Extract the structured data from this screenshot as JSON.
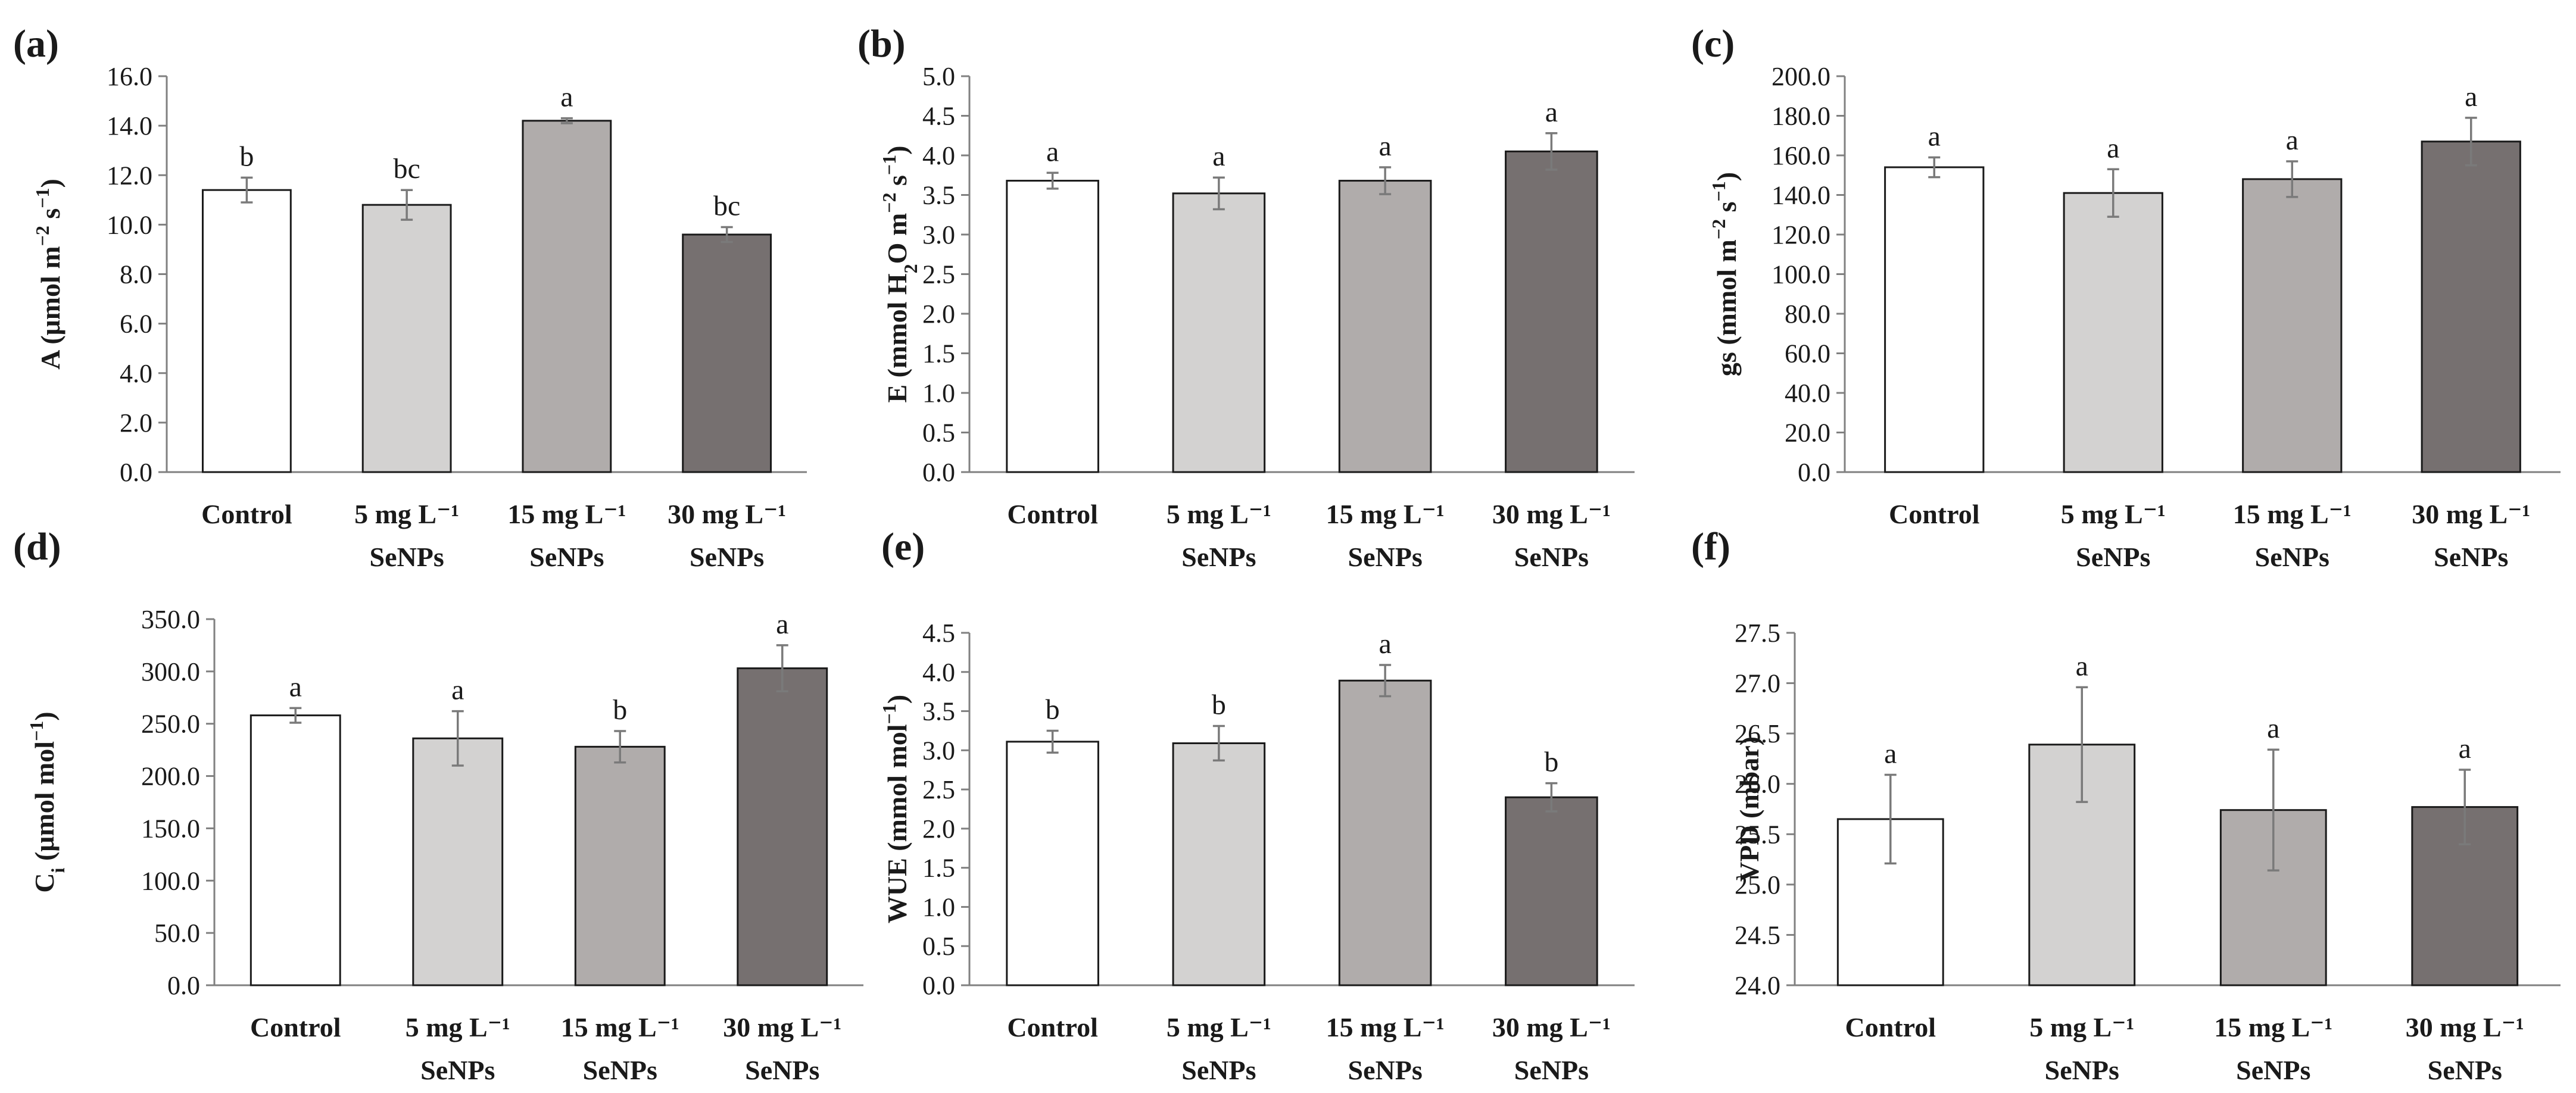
{
  "colors": {
    "control": "#ffffff",
    "se5": "#d3d2d1",
    "se15": "#b0acab",
    "se30": "#767070"
  },
  "chart_data": [
    {
      "type": "bar",
      "panel_label": "(a)",
      "ylabel_parts": [
        "A (μmol m",
        "−2",
        " s",
        "−1",
        ")"
      ],
      "categories": [
        [
          "Control"
        ],
        [
          "5 mg L⁻¹",
          "SeNPs"
        ],
        [
          "15 mg L⁻¹",
          "SeNPs"
        ],
        [
          "30 mg L⁻¹",
          "SeNPs"
        ]
      ],
      "values": [
        11.4,
        10.8,
        14.2,
        9.6
      ],
      "errors": [
        0.5,
        0.6,
        0.1,
        0.3
      ],
      "letters": [
        "b",
        "bc",
        "a",
        "bc"
      ],
      "ylim": [
        0,
        16
      ],
      "ticks": [
        "0.0",
        "2.0",
        "4.0",
        "6.0",
        "8.0",
        "10.0",
        "12.0",
        "14.0",
        "16.0"
      ]
    },
    {
      "type": "bar",
      "panel_label": "(b)",
      "ylabel_parts": [
        "E (mmol H",
        "2",
        "O m",
        "−2",
        " s",
        "−1",
        ")"
      ],
      "categories": [
        [
          "Control"
        ],
        [
          "5 mg L⁻¹",
          "SeNPs"
        ],
        [
          "15 mg L⁻¹",
          "SeNPs"
        ],
        [
          "30 mg L⁻¹",
          "SeNPs"
        ]
      ],
      "values": [
        3.68,
        3.52,
        3.68,
        4.05
      ],
      "errors": [
        0.1,
        0.2,
        0.17,
        0.23
      ],
      "letters": [
        "a",
        "a",
        "a",
        "a"
      ],
      "ylim": [
        0,
        5
      ],
      "ticks": [
        "0.0",
        "0.5",
        "1.0",
        "1.5",
        "2.0",
        "2.5",
        "3.0",
        "3.5",
        "4.0",
        "4.5",
        "5.0"
      ]
    },
    {
      "type": "bar",
      "panel_label": "(c)",
      "ylabel_parts": [
        "gs (mmol m",
        "−2",
        " s",
        "−1",
        ")"
      ],
      "categories": [
        [
          "Control"
        ],
        [
          "5 mg L⁻¹",
          "SeNPs"
        ],
        [
          "15 mg L⁻¹",
          "SeNPs"
        ],
        [
          "30 mg L⁻¹",
          "SeNPs"
        ]
      ],
      "values": [
        154,
        141,
        148,
        167
      ],
      "errors": [
        5,
        12,
        9,
        12
      ],
      "letters": [
        "a",
        "a",
        "a",
        "a"
      ],
      "ylim": [
        0,
        200
      ],
      "ticks": [
        "0.0",
        "20.0",
        "40.0",
        "60.0",
        "80.0",
        "100.0",
        "120.0",
        "140.0",
        "160.0",
        "180.0",
        "200.0"
      ]
    },
    {
      "type": "bar",
      "panel_label": "(d)",
      "ylabel_parts": [
        "C",
        "i",
        " (μmol mol",
        "−1",
        ")"
      ],
      "categories": [
        [
          "Control"
        ],
        [
          "5 mg L⁻¹",
          "SeNPs"
        ],
        [
          "15 mg L⁻¹",
          "SeNPs"
        ],
        [
          "30 mg L⁻¹",
          "SeNPs"
        ]
      ],
      "values": [
        258,
        236,
        228,
        303
      ],
      "errors": [
        7,
        26,
        15,
        22
      ],
      "letters": [
        "a",
        "a",
        "b",
        "a"
      ],
      "ylim": [
        0,
        350
      ],
      "ticks": [
        "0.0",
        "50.0",
        "100.0",
        "150.0",
        "200.0",
        "250.0",
        "300.0",
        "350.0"
      ]
    },
    {
      "type": "bar",
      "panel_label": "(e)",
      "ylabel_parts": [
        "WUE (mmol mol",
        "−1",
        ")"
      ],
      "categories": [
        [
          "Control"
        ],
        [
          "5 mg L⁻¹",
          "SeNPs"
        ],
        [
          "15 mg L⁻¹",
          "SeNPs"
        ],
        [
          "30 mg L⁻¹",
          "SeNPs"
        ]
      ],
      "values": [
        3.11,
        3.09,
        3.89,
        2.4
      ],
      "errors": [
        0.14,
        0.22,
        0.2,
        0.18
      ],
      "letters": [
        "b",
        "b",
        "a",
        "b"
      ],
      "ylim": [
        0,
        4.5
      ],
      "ticks": [
        "0.0",
        "0.5",
        "1.0",
        "1.5",
        "2.0",
        "2.5",
        "3.0",
        "3.5",
        "4.0",
        "4.5"
      ]
    },
    {
      "type": "bar",
      "panel_label": "(f)",
      "ylabel_parts": [
        "VPD (mbar)"
      ],
      "categories": [
        [
          "Control"
        ],
        [
          "5 mg L⁻¹",
          "SeNPs"
        ],
        [
          "15 mg L⁻¹",
          "SeNPs"
        ],
        [
          "30 mg L⁻¹",
          "SeNPs"
        ]
      ],
      "values": [
        25.65,
        26.39,
        25.74,
        25.77
      ],
      "errors": [
        0.44,
        0.57,
        0.6,
        0.37
      ],
      "letters": [
        "a",
        "a",
        "a",
        "a"
      ],
      "ylim": [
        24,
        27.5
      ],
      "ticks": [
        "24.0",
        "24.5",
        "25.0",
        "25.5",
        "26.0",
        "26.5",
        "27.0",
        "27.5"
      ]
    }
  ]
}
